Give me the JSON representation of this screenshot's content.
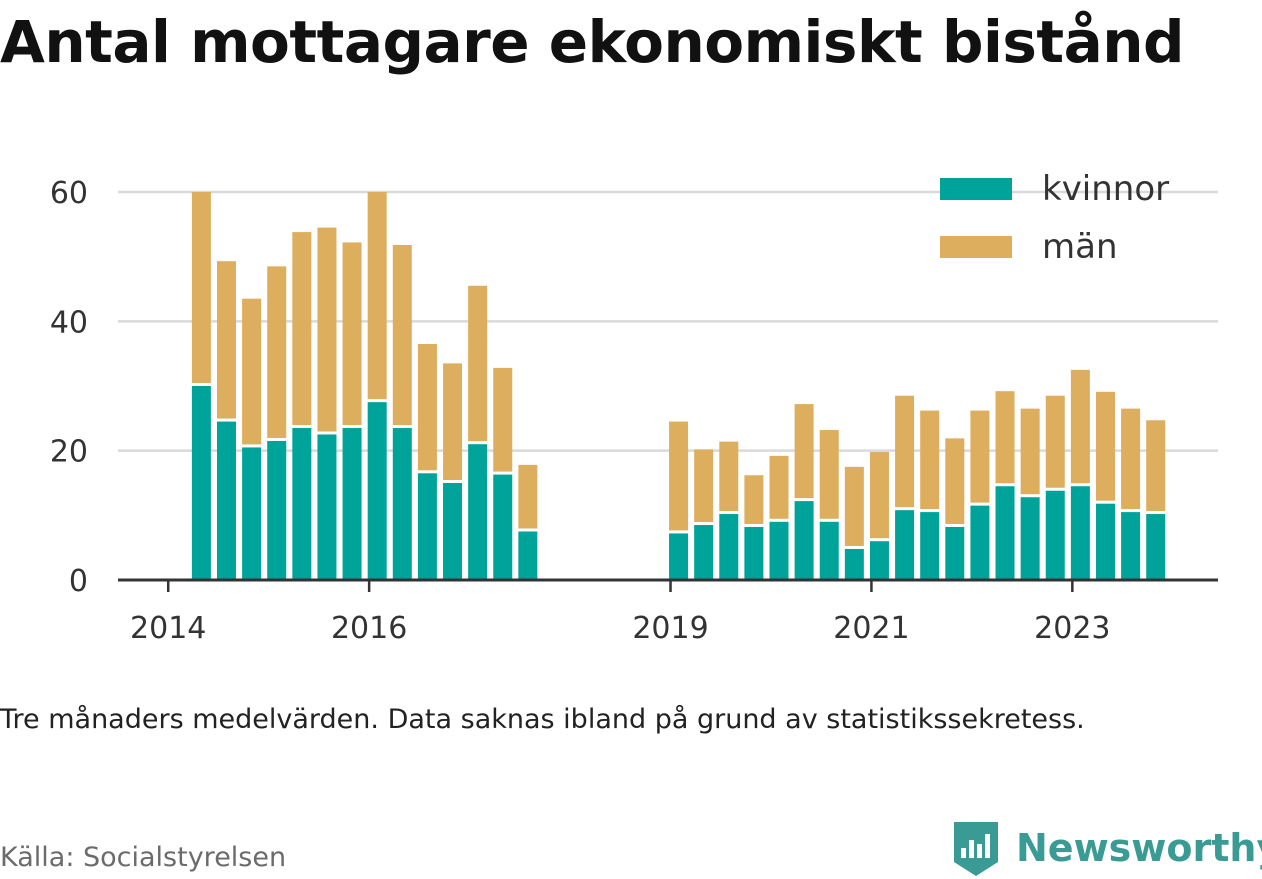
{
  "title": "Antal mottagare ekonomiskt bistånd",
  "note": "Tre månaders medelvärden. Data saknas ibland på grund av statistikssekretess.",
  "source": "Källa: Socialstyrelsen",
  "brand": "Newsworthy",
  "colors": {
    "kvinnor": "#00a39a",
    "man": "#ddae5d",
    "grid": "#d9d9d9",
    "axis": "#333333",
    "brand": "#3a9a94"
  },
  "chart_data": {
    "type": "bar",
    "stacked": true,
    "ylim": [
      0,
      60
    ],
    "yticks": [
      0,
      20,
      40,
      60
    ],
    "xticks": [
      {
        "label": "2014",
        "x": 2014.0
      },
      {
        "label": "2016",
        "x": 2016.0
      },
      {
        "label": "2019",
        "x": 2019.0
      },
      {
        "label": "2021",
        "x": 2021.0
      },
      {
        "label": "2023",
        "x": 2023.0
      }
    ],
    "xlim": [
      2013.5,
      2024.45
    ],
    "legend_position": "top-right",
    "grid": true,
    "series": [
      {
        "name": "kvinnor",
        "color": "#00a39a",
        "points": [
          {
            "x": 2014.33,
            "v": 30
          },
          {
            "x": 2014.58,
            "v": 24.5
          },
          {
            "x": 2014.83,
            "v": 20.5
          },
          {
            "x": 2015.08,
            "v": 21.5
          },
          {
            "x": 2015.33,
            "v": 23.5
          },
          {
            "x": 2015.58,
            "v": 22.5
          },
          {
            "x": 2015.83,
            "v": 23.5
          },
          {
            "x": 2016.08,
            "v": 27.5
          },
          {
            "x": 2016.33,
            "v": 23.5
          },
          {
            "x": 2016.58,
            "v": 16.5
          },
          {
            "x": 2016.83,
            "v": 15
          },
          {
            "x": 2017.08,
            "v": 21
          },
          {
            "x": 2017.33,
            "v": 16.3
          },
          {
            "x": 2017.58,
            "v": 7.5
          },
          {
            "x": 2019.08,
            "v": 7.2
          },
          {
            "x": 2019.33,
            "v": 8.5
          },
          {
            "x": 2019.58,
            "v": 10.2
          },
          {
            "x": 2019.83,
            "v": 8.2
          },
          {
            "x": 2020.08,
            "v": 9
          },
          {
            "x": 2020.33,
            "v": 12.2
          },
          {
            "x": 2020.58,
            "v": 9
          },
          {
            "x": 2020.83,
            "v": 4.8
          },
          {
            "x": 2021.08,
            "v": 6
          },
          {
            "x": 2021.33,
            "v": 10.8
          },
          {
            "x": 2021.58,
            "v": 10.5
          },
          {
            "x": 2021.83,
            "v": 8.2
          },
          {
            "x": 2022.08,
            "v": 11.5
          },
          {
            "x": 2022.33,
            "v": 14.5
          },
          {
            "x": 2022.58,
            "v": 12.8
          },
          {
            "x": 2022.83,
            "v": 13.8
          },
          {
            "x": 2023.08,
            "v": 14.5
          },
          {
            "x": 2023.33,
            "v": 11.8
          },
          {
            "x": 2023.58,
            "v": 10.5
          },
          {
            "x": 2023.83,
            "v": 10.2
          }
        ]
      },
      {
        "name": "män",
        "color": "#ddae5d",
        "points": [
          {
            "x": 2014.33,
            "v": 30
          },
          {
            "x": 2014.58,
            "v": 24.8
          },
          {
            "x": 2014.83,
            "v": 23
          },
          {
            "x": 2015.08,
            "v": 27
          },
          {
            "x": 2015.33,
            "v": 30.3
          },
          {
            "x": 2015.58,
            "v": 32
          },
          {
            "x": 2015.83,
            "v": 28.7
          },
          {
            "x": 2016.08,
            "v": 32.5
          },
          {
            "x": 2016.33,
            "v": 28.3
          },
          {
            "x": 2016.58,
            "v": 20
          },
          {
            "x": 2016.83,
            "v": 18.5
          },
          {
            "x": 2017.08,
            "v": 24.5
          },
          {
            "x": 2017.33,
            "v": 16.5
          },
          {
            "x": 2017.58,
            "v": 10.3
          },
          {
            "x": 2019.08,
            "v": 17.3
          },
          {
            "x": 2019.33,
            "v": 11.7
          },
          {
            "x": 2019.58,
            "v": 11.2
          },
          {
            "x": 2019.83,
            "v": 8
          },
          {
            "x": 2020.08,
            "v": 10.2
          },
          {
            "x": 2020.33,
            "v": 15
          },
          {
            "x": 2020.58,
            "v": 14.2
          },
          {
            "x": 2020.83,
            "v": 12.7
          },
          {
            "x": 2021.08,
            "v": 13.8
          },
          {
            "x": 2021.33,
            "v": 17.7
          },
          {
            "x": 2021.58,
            "v": 15.7
          },
          {
            "x": 2021.83,
            "v": 13.7
          },
          {
            "x": 2022.08,
            "v": 14.7
          },
          {
            "x": 2022.33,
            "v": 14.7
          },
          {
            "x": 2022.58,
            "v": 13.7
          },
          {
            "x": 2022.83,
            "v": 14.7
          },
          {
            "x": 2023.08,
            "v": 18
          },
          {
            "x": 2023.33,
            "v": 17.3
          },
          {
            "x": 2023.58,
            "v": 16
          },
          {
            "x": 2023.83,
            "v": 14.5
          }
        ]
      }
    ]
  }
}
